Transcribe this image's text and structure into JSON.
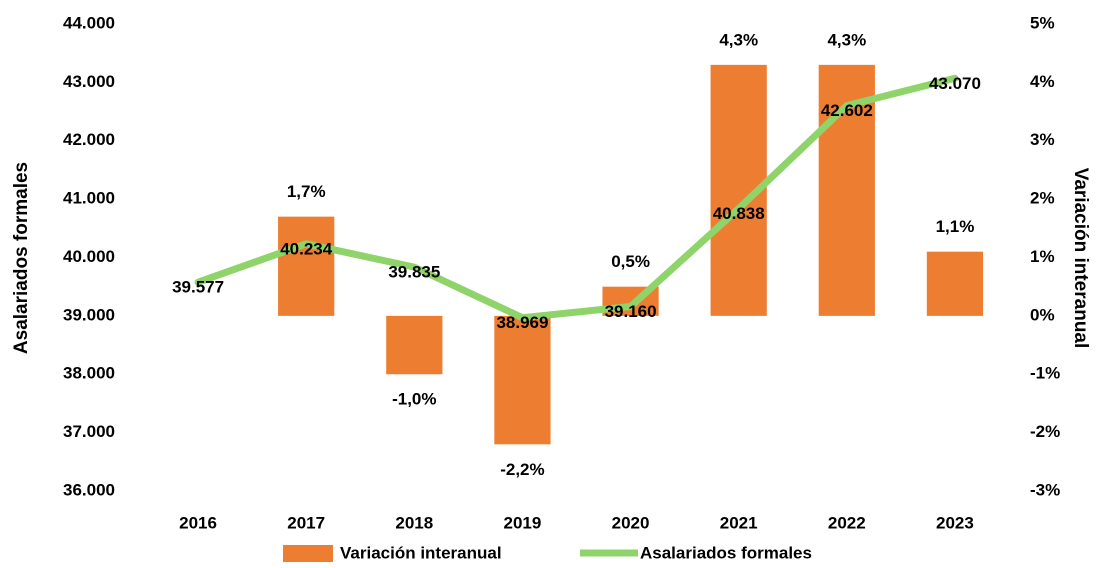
{
  "chart_data": {
    "type": "bar-line",
    "categories": [
      "2016",
      "2017",
      "2018",
      "2019",
      "2020",
      "2021",
      "2022",
      "2023"
    ],
    "series": [
      {
        "name": "Variación interanual",
        "type": "bar",
        "axis": "y2",
        "color": "#ed7d31",
        "values": [
          null,
          1.7,
          -1.0,
          -2.2,
          0.5,
          4.3,
          4.3,
          1.1
        ],
        "value_labels": [
          null,
          "1,7%",
          "-1,0%",
          "-2,2%",
          "0,5%",
          "4,3%",
          "4,3%",
          "1,1%"
        ]
      },
      {
        "name": "Asalariados formales",
        "type": "line",
        "axis": "y",
        "color": "#8fd46a",
        "values": [
          39577,
          40234,
          39835,
          38969,
          39160,
          40838,
          42602,
          43070
        ],
        "value_labels": [
          "39.577",
          "40.234",
          "39.835",
          "38.969",
          "39.160",
          "40.838",
          "42.602",
          "43.070"
        ]
      }
    ],
    "ylabel": "Asalariados formales",
    "y2label": "Variación interanual",
    "ylim": [
      36000,
      44000
    ],
    "yticks": [
      {
        "value": 36000,
        "label": "36.000"
      },
      {
        "value": 37000,
        "label": "37.000"
      },
      {
        "value": 38000,
        "label": "38.000"
      },
      {
        "value": 39000,
        "label": "39.000"
      },
      {
        "value": 40000,
        "label": "40.000"
      },
      {
        "value": 41000,
        "label": "41.000"
      },
      {
        "value": 42000,
        "label": "42.000"
      },
      {
        "value": 43000,
        "label": "43.000"
      },
      {
        "value": 44000,
        "label": "44.000"
      }
    ],
    "y2lim": [
      -3,
      5
    ],
    "y2ticks": [
      {
        "value": -3,
        "label": "-3%"
      },
      {
        "value": -2,
        "label": "-2%"
      },
      {
        "value": -1,
        "label": "-1%"
      },
      {
        "value": 0,
        "label": "0%"
      },
      {
        "value": 1,
        "label": "1%"
      },
      {
        "value": 2,
        "label": "2%"
      },
      {
        "value": 3,
        "label": "3%"
      },
      {
        "value": 4,
        "label": "4%"
      },
      {
        "value": 5,
        "label": "5%"
      }
    ],
    "legend": "bottom"
  }
}
